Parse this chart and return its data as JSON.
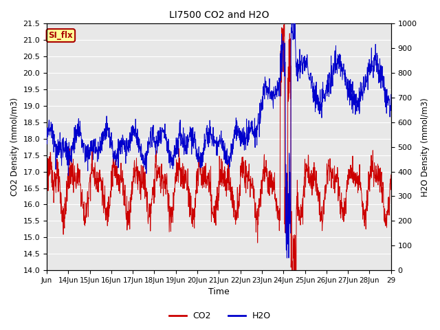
{
  "title": "LI7500 CO2 and H2O",
  "xlabel": "Time",
  "ylabel_left": "CO2 Density (mmol/m3)",
  "ylabel_right": "H2O Density (mmol/m3)",
  "ylim_left": [
    14.0,
    21.5
  ],
  "ylim_right": [
    0,
    1000
  ],
  "yticks_left": [
    14.0,
    14.5,
    15.0,
    15.5,
    16.0,
    16.5,
    17.0,
    17.5,
    18.0,
    18.5,
    19.0,
    19.5,
    20.0,
    20.5,
    21.0,
    21.5
  ],
  "yticks_right": [
    0,
    100,
    200,
    300,
    400,
    500,
    600,
    700,
    800,
    900,
    1000
  ],
  "xtick_labels": [
    "Jun",
    "14Jun",
    "15Jun",
    "16Jun",
    "17Jun",
    "18Jun",
    "19Jun",
    "20Jun",
    "21Jun",
    "22Jun",
    "23Jun",
    "24Jun",
    "25Jun",
    "26Jun",
    "27Jun",
    "28Jun",
    "29"
  ],
  "co2_color": "#cc0000",
  "h2o_color": "#0000cc",
  "annotation_text": "SI_flx",
  "annotation_bg": "#ffff99",
  "annotation_border": "#aa0000",
  "bg_color": "#e8e8e8",
  "grid_color": "#ffffff",
  "n_days": 16,
  "seed": 123
}
